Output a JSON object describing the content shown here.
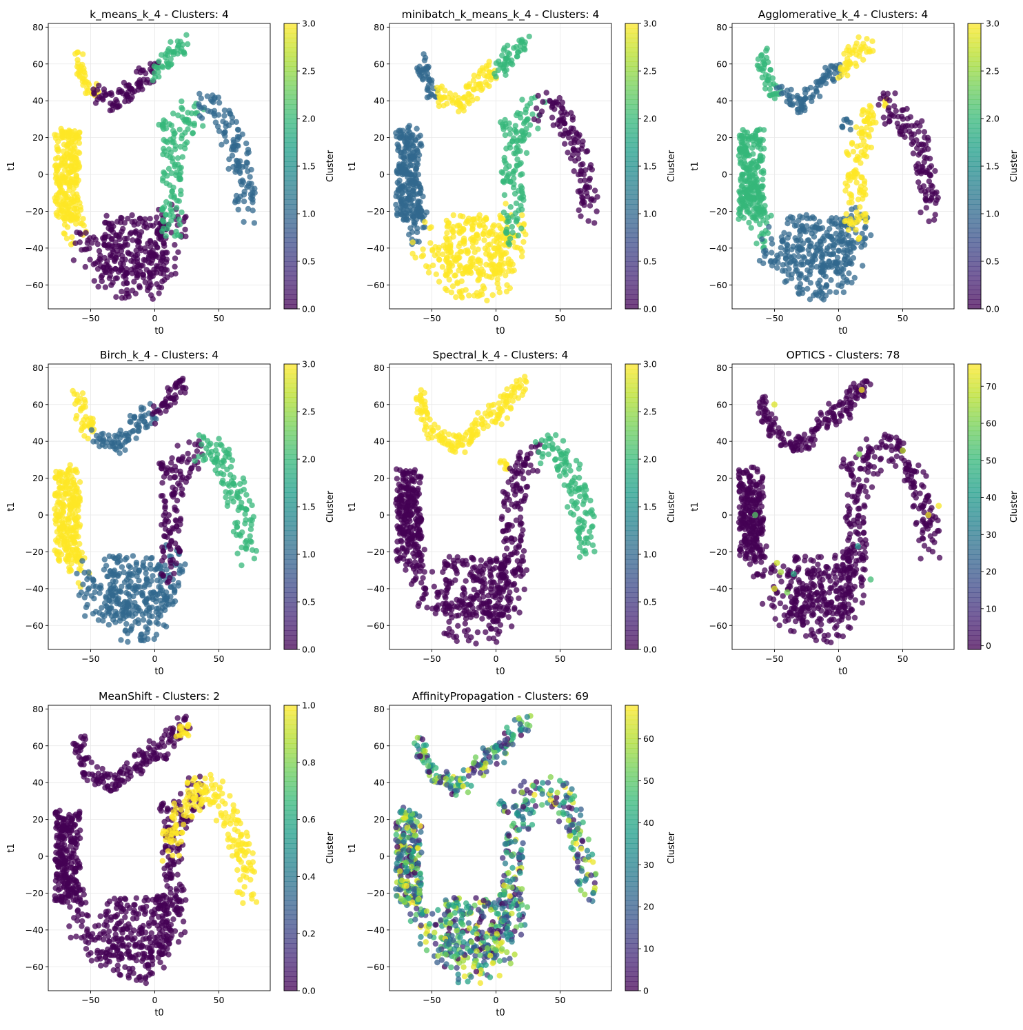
{
  "colors": {
    "viridis": [
      "#440154",
      "#3b528b",
      "#21918c",
      "#5ec962",
      "#fde725"
    ],
    "grid": "#e8e8e8"
  },
  "charts": [
    {
      "title": "k_means_k_4 - Clusters: 4",
      "xlabel": "t0",
      "ylabel": "t1",
      "colorbar_label": "Cluster",
      "xlim": [
        -83,
        90
      ],
      "ylim": [
        -73,
        82
      ],
      "xticks": [
        -50,
        0,
        50
      ],
      "yticks": [
        -60,
        -40,
        -20,
        0,
        20,
        40,
        60,
        80
      ],
      "cbar_range": [
        0,
        3
      ],
      "cbar_ticks": [
        "0.0",
        "0.5",
        "1.0",
        "1.5",
        "2.0",
        "2.5",
        "3.0"
      ],
      "legend": "none",
      "grid": true
    },
    {
      "title": "minibatch_k_means_k_4 - Clusters: 4",
      "xlabel": "t0",
      "ylabel": "t1",
      "colorbar_label": "Cluster",
      "xlim": [
        -83,
        90
      ],
      "ylim": [
        -73,
        82
      ],
      "xticks": [
        -50,
        0,
        50
      ],
      "yticks": [
        -60,
        -40,
        -20,
        0,
        20,
        40,
        60,
        80
      ],
      "cbar_range": [
        0,
        3
      ],
      "cbar_ticks": [
        "0.0",
        "0.5",
        "1.0",
        "1.5",
        "2.0",
        "2.5",
        "3.0"
      ],
      "legend": "none",
      "grid": true
    },
    {
      "title": "Agglomerative_k_4 - Clusters: 4",
      "xlabel": "t0",
      "ylabel": "t1",
      "colorbar_label": "Cluster",
      "xlim": [
        -83,
        90
      ],
      "ylim": [
        -73,
        82
      ],
      "xticks": [
        -50,
        0,
        50
      ],
      "yticks": [
        -60,
        -40,
        -20,
        0,
        20,
        40,
        60,
        80
      ],
      "cbar_range": [
        0,
        3
      ],
      "cbar_ticks": [
        "0.0",
        "0.5",
        "1.0",
        "1.5",
        "2.0",
        "2.5",
        "3.0"
      ],
      "legend": "none",
      "grid": true
    },
    {
      "title": "Birch_k_4 - Clusters: 4",
      "xlabel": "t0",
      "ylabel": "t1",
      "colorbar_label": "Cluster",
      "xlim": [
        -83,
        90
      ],
      "ylim": [
        -73,
        82
      ],
      "xticks": [
        -50,
        0,
        50
      ],
      "yticks": [
        -60,
        -40,
        -20,
        0,
        20,
        40,
        60,
        80
      ],
      "cbar_range": [
        0,
        3
      ],
      "cbar_ticks": [
        "0.0",
        "0.5",
        "1.0",
        "1.5",
        "2.0",
        "2.5",
        "3.0"
      ],
      "legend": "none",
      "grid": true
    },
    {
      "title": "Spectral_k_4 - Clusters: 4",
      "xlabel": "t0",
      "ylabel": "t1",
      "colorbar_label": "Cluster",
      "xlim": [
        -83,
        90
      ],
      "ylim": [
        -73,
        82
      ],
      "xticks": [
        -50,
        0,
        50
      ],
      "yticks": [
        -60,
        -40,
        -20,
        0,
        20,
        40,
        60,
        80
      ],
      "cbar_range": [
        0,
        3
      ],
      "cbar_ticks": [
        "0.0",
        "0.5",
        "1.0",
        "1.5",
        "2.0",
        "2.5",
        "3.0"
      ],
      "legend": "none",
      "grid": true
    },
    {
      "title": "OPTICS - Clusters: 78",
      "xlabel": "t0",
      "ylabel": "t1",
      "colorbar_label": "Cluster",
      "xlim": [
        -83,
        90
      ],
      "ylim": [
        -73,
        82
      ],
      "xticks": [
        -50,
        0,
        50
      ],
      "yticks": [
        -60,
        -40,
        -20,
        0,
        20,
        40,
        60,
        80
      ],
      "cbar_range": [
        -1,
        76
      ],
      "cbar_ticks": [
        "0",
        "10",
        "20",
        "30",
        "40",
        "50",
        "60",
        "70"
      ],
      "legend": "none",
      "grid": true
    },
    {
      "title": "MeanShift - Clusters: 2",
      "xlabel": "t0",
      "ylabel": "t1",
      "colorbar_label": "Cluster",
      "xlim": [
        -83,
        90
      ],
      "ylim": [
        -73,
        82
      ],
      "xticks": [
        -50,
        0,
        50
      ],
      "yticks": [
        -60,
        -40,
        -20,
        0,
        20,
        40,
        60,
        80
      ],
      "cbar_range": [
        0,
        1
      ],
      "cbar_ticks": [
        "0.0",
        "0.2",
        "0.4",
        "0.6",
        "0.8",
        "1.0"
      ],
      "legend": "none",
      "grid": true
    },
    {
      "title": "AffinityPropagation - Clusters: 69",
      "xlabel": "t0",
      "ylabel": "t1",
      "colorbar_label": "Cluster",
      "xlim": [
        -83,
        90
      ],
      "ylim": [
        -73,
        82
      ],
      "xticks": [
        -50,
        0,
        50
      ],
      "yticks": [
        -60,
        -40,
        -20,
        0,
        20,
        40,
        60,
        80
      ],
      "cbar_range": [
        0,
        68
      ],
      "cbar_ticks": [
        "0",
        "10",
        "20",
        "30",
        "40",
        "50",
        "60"
      ],
      "legend": "none",
      "grid": true
    }
  ],
  "chart_data": [
    {
      "type": "scatter",
      "title": "k_means_k_4 - Clusters: 4",
      "xlabel": "t0",
      "ylabel": "t1",
      "xlim": [
        -83,
        90
      ],
      "ylim": [
        -73,
        82
      ],
      "color_range": [
        0,
        3
      ],
      "grid": true,
      "regions": [
        {
          "name": "upper-left lobe",
          "cluster": 3
        },
        {
          "name": "upper-middle lobe",
          "cluster": 0
        },
        {
          "name": "upper-right arm",
          "cluster": 2
        },
        {
          "name": "small island",
          "cluster": 2
        },
        {
          "name": "left block",
          "cluster": 3
        },
        {
          "name": "bottom bowl",
          "cluster": 0
        },
        {
          "name": "rising arm",
          "cluster": 2
        },
        {
          "name": "right arc",
          "cluster": 1
        }
      ]
    },
    {
      "type": "scatter",
      "title": "minibatch_k_means_k_4 - Clusters: 4",
      "xlabel": "t0",
      "ylabel": "t1",
      "xlim": [
        -83,
        90
      ],
      "ylim": [
        -73,
        82
      ],
      "color_range": [
        0,
        3
      ],
      "grid": true,
      "regions": [
        {
          "name": "upper-left lobe",
          "cluster": 1
        },
        {
          "name": "upper-middle lobe",
          "cluster": 3
        },
        {
          "name": "upper-right arm",
          "cluster": 2
        },
        {
          "name": "small island",
          "cluster": 2
        },
        {
          "name": "left block",
          "cluster": 1
        },
        {
          "name": "bottom bowl",
          "cluster": 3
        },
        {
          "name": "rising arm",
          "cluster": 2
        },
        {
          "name": "right arc",
          "cluster": 0
        }
      ]
    },
    {
      "type": "scatter",
      "title": "Agglomerative_k_4 - Clusters: 4",
      "xlabel": "t0",
      "ylabel": "t1",
      "xlim": [
        -83,
        90
      ],
      "ylim": [
        -73,
        82
      ],
      "color_range": [
        0,
        3
      ],
      "grid": true,
      "regions": [
        {
          "name": "upper-left lobe",
          "cluster": 2
        },
        {
          "name": "upper-middle lobe",
          "cluster": 1
        },
        {
          "name": "upper-right arm",
          "cluster": 3
        },
        {
          "name": "small island",
          "cluster": 1
        },
        {
          "name": "left block",
          "cluster": 2
        },
        {
          "name": "bottom bowl",
          "cluster": 1
        },
        {
          "name": "rising arm",
          "cluster": 3
        },
        {
          "name": "right arc",
          "cluster": 0
        }
      ]
    },
    {
      "type": "scatter",
      "title": "Birch_k_4 - Clusters: 4",
      "xlabel": "t0",
      "ylabel": "t1",
      "xlim": [
        -83,
        90
      ],
      "ylim": [
        -73,
        82
      ],
      "color_range": [
        0,
        3
      ],
      "grid": true,
      "regions": [
        {
          "name": "upper-left lobe",
          "cluster": 3
        },
        {
          "name": "upper-middle lobe",
          "cluster": 1
        },
        {
          "name": "upper-right arm",
          "cluster": 0
        },
        {
          "name": "small island",
          "cluster": 0
        },
        {
          "name": "left block",
          "cluster": 3
        },
        {
          "name": "bottom bowl",
          "cluster": 1
        },
        {
          "name": "rising arm",
          "cluster": 0
        },
        {
          "name": "right arc",
          "cluster": 2
        }
      ]
    },
    {
      "type": "scatter",
      "title": "Spectral_k_4 - Clusters: 4",
      "xlabel": "t0",
      "ylabel": "t1",
      "xlim": [
        -83,
        90
      ],
      "ylim": [
        -73,
        82
      ],
      "color_range": [
        0,
        3
      ],
      "grid": true,
      "regions": [
        {
          "name": "upper-left lobe",
          "cluster": 3
        },
        {
          "name": "upper-middle lobe",
          "cluster": 3
        },
        {
          "name": "upper-right arm",
          "cluster": 3
        },
        {
          "name": "small island",
          "cluster": 3
        },
        {
          "name": "left block",
          "cluster": 0
        },
        {
          "name": "bottom bowl",
          "cluster": 0
        },
        {
          "name": "rising arm",
          "cluster": 0
        },
        {
          "name": "right arc",
          "cluster": 2
        }
      ]
    },
    {
      "type": "scatter",
      "title": "OPTICS - Clusters: 78",
      "xlabel": "t0",
      "ylabel": "t1",
      "xlim": [
        -83,
        90
      ],
      "ylim": [
        -73,
        82
      ],
      "color_range": [
        -1,
        76
      ],
      "grid": true,
      "regions": [
        {
          "name": "upper-left lobe",
          "cluster": -1
        },
        {
          "name": "upper-middle lobe",
          "cluster": -1
        },
        {
          "name": "upper-right arm",
          "cluster": -1
        },
        {
          "name": "small island",
          "cluster": -1
        },
        {
          "name": "left block",
          "cluster": -1
        },
        {
          "name": "bottom bowl",
          "cluster": -1
        },
        {
          "name": "rising arm",
          "cluster": -1
        },
        {
          "name": "right arc",
          "cluster": -1
        }
      ],
      "scattered_small_clusters": [
        {
          "x": -65,
          "y": 0,
          "cluster": 55
        },
        {
          "x": -48,
          "y": -26,
          "cluster": 70
        },
        {
          "x": -45,
          "y": -31,
          "cluster": 65
        },
        {
          "x": -35,
          "y": -32,
          "cluster": 45
        },
        {
          "x": -50,
          "y": -40,
          "cluster": 72
        },
        {
          "x": -40,
          "y": -42,
          "cluster": 60
        },
        {
          "x": 15,
          "y": -17,
          "cluster": 38
        },
        {
          "x": 25,
          "y": -35,
          "cluster": 52
        },
        {
          "x": 16,
          "y": 33,
          "cluster": 60
        },
        {
          "x": 50,
          "y": 35,
          "cluster": 68
        },
        {
          "x": 70,
          "y": 0,
          "cluster": 74
        },
        {
          "x": 78,
          "y": 5,
          "cluster": 75
        },
        {
          "x": -50,
          "y": 60,
          "cluster": 72
        },
        {
          "x": 18,
          "y": 68,
          "cluster": 75
        }
      ]
    },
    {
      "type": "scatter",
      "title": "MeanShift - Clusters: 2",
      "xlabel": "t0",
      "ylabel": "t1",
      "xlim": [
        -83,
        90
      ],
      "ylim": [
        -73,
        82
      ],
      "color_range": [
        0,
        1
      ],
      "grid": true,
      "regions": [
        {
          "name": "upper-left lobe",
          "cluster": 0
        },
        {
          "name": "upper-middle lobe",
          "cluster": 0
        },
        {
          "name": "upper-right arm",
          "cluster": 0
        },
        {
          "name": "upper-right tip",
          "cluster": 1
        },
        {
          "name": "small island",
          "cluster": 0
        },
        {
          "name": "left block",
          "cluster": 0
        },
        {
          "name": "bottom bowl",
          "cluster": 0
        },
        {
          "name": "rising arm",
          "cluster": 0
        },
        {
          "name": "upper rising arm",
          "cluster": 1
        },
        {
          "name": "right arc",
          "cluster": 1
        }
      ]
    },
    {
      "type": "scatter",
      "title": "AffinityPropagation - Clusters: 69",
      "xlabel": "t0",
      "ylabel": "t1",
      "xlim": [
        -83,
        90
      ],
      "ylim": [
        -73,
        82
      ],
      "color_range": [
        0,
        68
      ],
      "grid": true,
      "regions": [
        {
          "name": "upper-left lobe",
          "cluster": 12
        },
        {
          "name": "upper-middle lobe",
          "cluster": 8
        },
        {
          "name": "upper-right arm",
          "cluster": 10
        },
        {
          "name": "small island",
          "cluster": 5
        },
        {
          "name": "left block",
          "cluster": 45
        },
        {
          "name": "bottom bowl",
          "cluster": 48
        },
        {
          "name": "rising arm",
          "cluster": 52
        },
        {
          "name": "right arc",
          "cluster": 35
        }
      ]
    }
  ]
}
